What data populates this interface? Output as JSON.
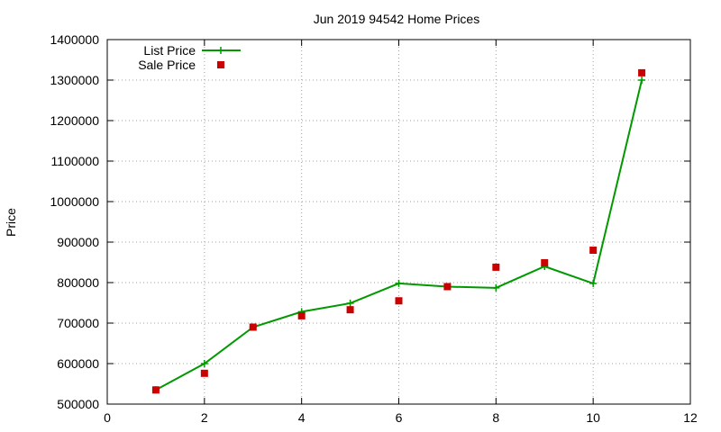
{
  "chart_data": {
    "type": "line",
    "title": "Jun 2019 94542 Home Prices",
    "xlabel": "",
    "ylabel": "Price",
    "xlim": [
      0,
      12
    ],
    "ylim": [
      500000,
      1400000
    ],
    "x_ticks": [
      0,
      2,
      4,
      6,
      8,
      10,
      12
    ],
    "y_ticks": [
      500000,
      600000,
      700000,
      800000,
      900000,
      1000000,
      1100000,
      1200000,
      1300000,
      1400000
    ],
    "grid": true,
    "legend_position": "top-left",
    "series": [
      {
        "name": "List Price",
        "style": "line-with-plus-markers",
        "color": "#009900",
        "x": [
          1,
          2,
          3,
          4,
          5,
          6,
          7,
          8,
          9,
          10,
          11
        ],
        "y": [
          535000,
          600000,
          690000,
          728000,
          749000,
          798000,
          790000,
          787000,
          840000,
          798000,
          1300000
        ]
      },
      {
        "name": "Sale Price",
        "style": "square-markers",
        "color": "#cc0000",
        "x": [
          1,
          2,
          3,
          4,
          5,
          6,
          7,
          8,
          9,
          10,
          11
        ],
        "y": [
          535000,
          576000,
          690000,
          718000,
          733000,
          755000,
          790000,
          838000,
          849000,
          880000,
          1318000
        ]
      }
    ]
  }
}
